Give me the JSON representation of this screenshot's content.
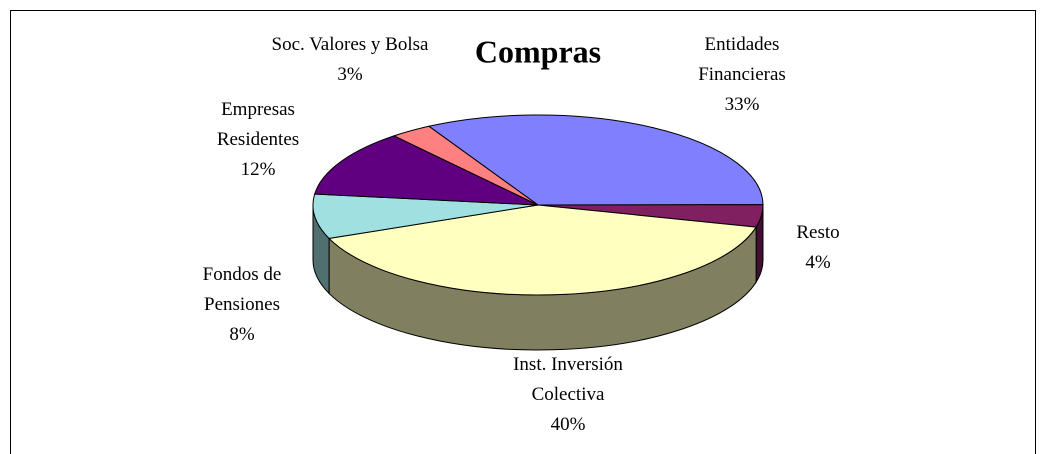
{
  "chart_data": {
    "type": "pie",
    "title": "Compras",
    "categories": [
      "Entidades Financieras",
      "Resto",
      "Inst. Inversión Colectiva",
      "Fondos de Pensiones",
      "Empresas Residentes",
      "Soc. Valores y Bolsa"
    ],
    "values": [
      33,
      4,
      40,
      8,
      12,
      3
    ],
    "value_labels": [
      "33%",
      "4%",
      "40%",
      "8%",
      "12%",
      "3%"
    ],
    "colors": [
      "#8080ff",
      "#802060",
      "#ffffc0",
      "#a0e0e0",
      "#600080",
      "#ff8080"
    ]
  }
}
